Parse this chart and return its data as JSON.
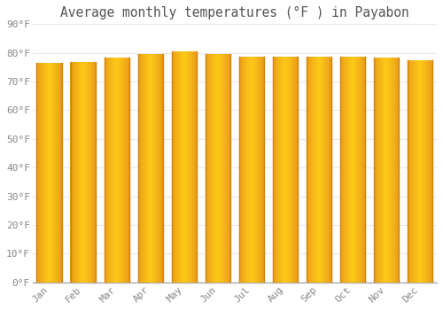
{
  "title": "Average monthly temperatures (°F ) in Payabon",
  "months": [
    "Jan",
    "Feb",
    "Mar",
    "Apr",
    "May",
    "Jun",
    "Jul",
    "Aug",
    "Sep",
    "Oct",
    "Nov",
    "Dec"
  ],
  "values": [
    76.5,
    76.8,
    78.3,
    79.7,
    80.4,
    79.5,
    78.6,
    78.6,
    78.8,
    78.8,
    78.3,
    77.4
  ],
  "bar_color_edge": "#E8961A",
  "bar_color_center": "#FCC917",
  "bar_color_left_dark": "#D4820A",
  "background_color": "#ffffff",
  "plot_bg_color": "#ffffff",
  "grid_color": "#e8e8e8",
  "ylim": [
    0,
    90
  ],
  "yticks": [
    0,
    10,
    20,
    30,
    40,
    50,
    60,
    70,
    80,
    90
  ],
  "title_fontsize": 10.5,
  "tick_fontsize": 8,
  "title_color": "#555555",
  "tick_color": "#888888",
  "bar_width": 0.75,
  "num_strips": 50
}
